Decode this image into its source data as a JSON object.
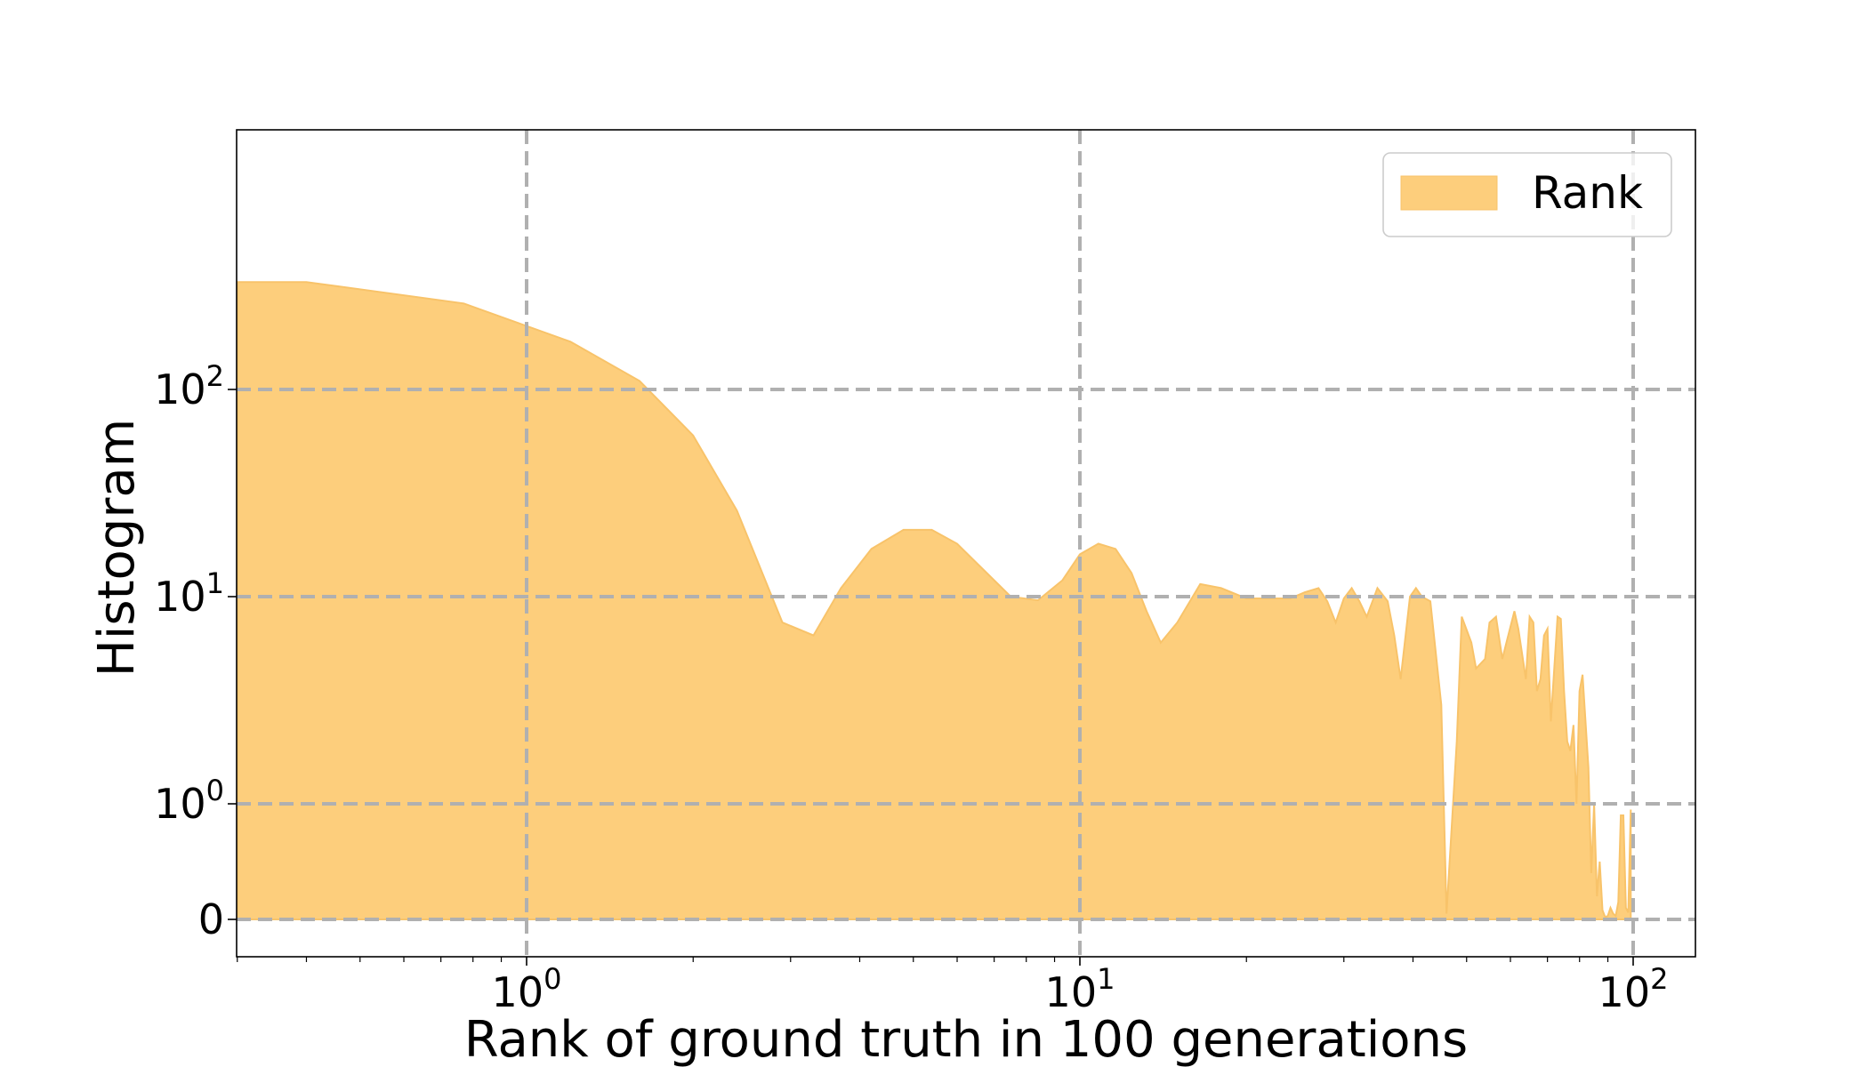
{
  "chart_data": {
    "type": "area",
    "xlabel": "Rank of ground truth in 100 generations",
    "ylabel": "Histogram",
    "x_scale": "log",
    "y_scale": "symlog",
    "grid": true,
    "legend_position": "top-right",
    "x_ticks": [
      {
        "value": 1,
        "base": "10",
        "exp": "0"
      },
      {
        "value": 10,
        "base": "10",
        "exp": "1"
      },
      {
        "value": 100,
        "base": "10",
        "exp": "2"
      }
    ],
    "y_ticks": [
      {
        "value": 0,
        "base": "0",
        "exp": ""
      },
      {
        "value": 1,
        "base": "10",
        "exp": "0"
      },
      {
        "value": 10,
        "base": "10",
        "exp": "1"
      },
      {
        "value": 100,
        "base": "10",
        "exp": "2"
      }
    ],
    "colors": {
      "fill": "#fdce7c",
      "edge": "#f8c36a",
      "grid": "#b0b0b0"
    },
    "series": [
      {
        "name": "Rank",
        "x": [
          0.3,
          0.4,
          0.77,
          1.2,
          1.6,
          2.0,
          2.4,
          2.9,
          3.3,
          3.7,
          4.2,
          4.8,
          5.4,
          6.0,
          6.6,
          7.5,
          8.4,
          9.3,
          10.0,
          10.8,
          11.6,
          12.4,
          13.2,
          14.0,
          15.0,
          16.5,
          18.0,
          20.0,
          22.0,
          24.0,
          25.5,
          27.0,
          28.0,
          29.0,
          30.0,
          31.0,
          32.0,
          33.0,
          34.5,
          36.0,
          37.0,
          38.0,
          39.5,
          40.5,
          41.5,
          43.0,
          45.0,
          46.0,
          48.0,
          49.0,
          51.0,
          52.0,
          54.0,
          55.0,
          56.5,
          58.0,
          59.0,
          61.0,
          62.0,
          64.0,
          65.0,
          66.0,
          67.0,
          68.0,
          69.0,
          70.0,
          71.0,
          73.0,
          74.0,
          75.0,
          76.0,
          77.0,
          78.0,
          79.0,
          80.0,
          81.0,
          83.0,
          84.0,
          85.0,
          86.0,
          87.0,
          88.0,
          89.0,
          90.0,
          91.0,
          92.0,
          93.0,
          94.0,
          95.0,
          96.0,
          97.0,
          98.0,
          99.0
        ],
        "y": [
          330,
          330,
          260,
          170,
          110,
          60,
          26,
          7.5,
          6.5,
          11,
          17,
          21,
          21,
          18,
          14,
          10,
          9.6,
          12,
          16,
          18,
          17,
          13,
          8.5,
          6.0,
          7.5,
          11.5,
          11,
          9.8,
          9.8,
          9.8,
          10.5,
          11,
          9.5,
          7.5,
          9.8,
          11,
          9.5,
          8.0,
          11,
          9.5,
          6.5,
          4.0,
          10,
          11,
          10,
          9.5,
          3,
          0.05,
          2,
          8,
          6,
          4.5,
          5,
          7.5,
          8,
          5,
          6,
          8.5,
          7,
          4,
          8,
          7.5,
          3.5,
          4,
          6.5,
          7,
          2.5,
          8,
          7.8,
          3.5,
          2,
          1.8,
          2.4,
          1.0,
          3.5,
          4.2,
          1.5,
          0.4,
          1.0,
          0.2,
          0.5,
          0.08,
          0.02,
          0.03,
          0.1,
          0.05,
          0.03,
          0.15,
          0.9,
          0.9,
          0.1,
          0.06,
          0.95
        ]
      }
    ]
  }
}
